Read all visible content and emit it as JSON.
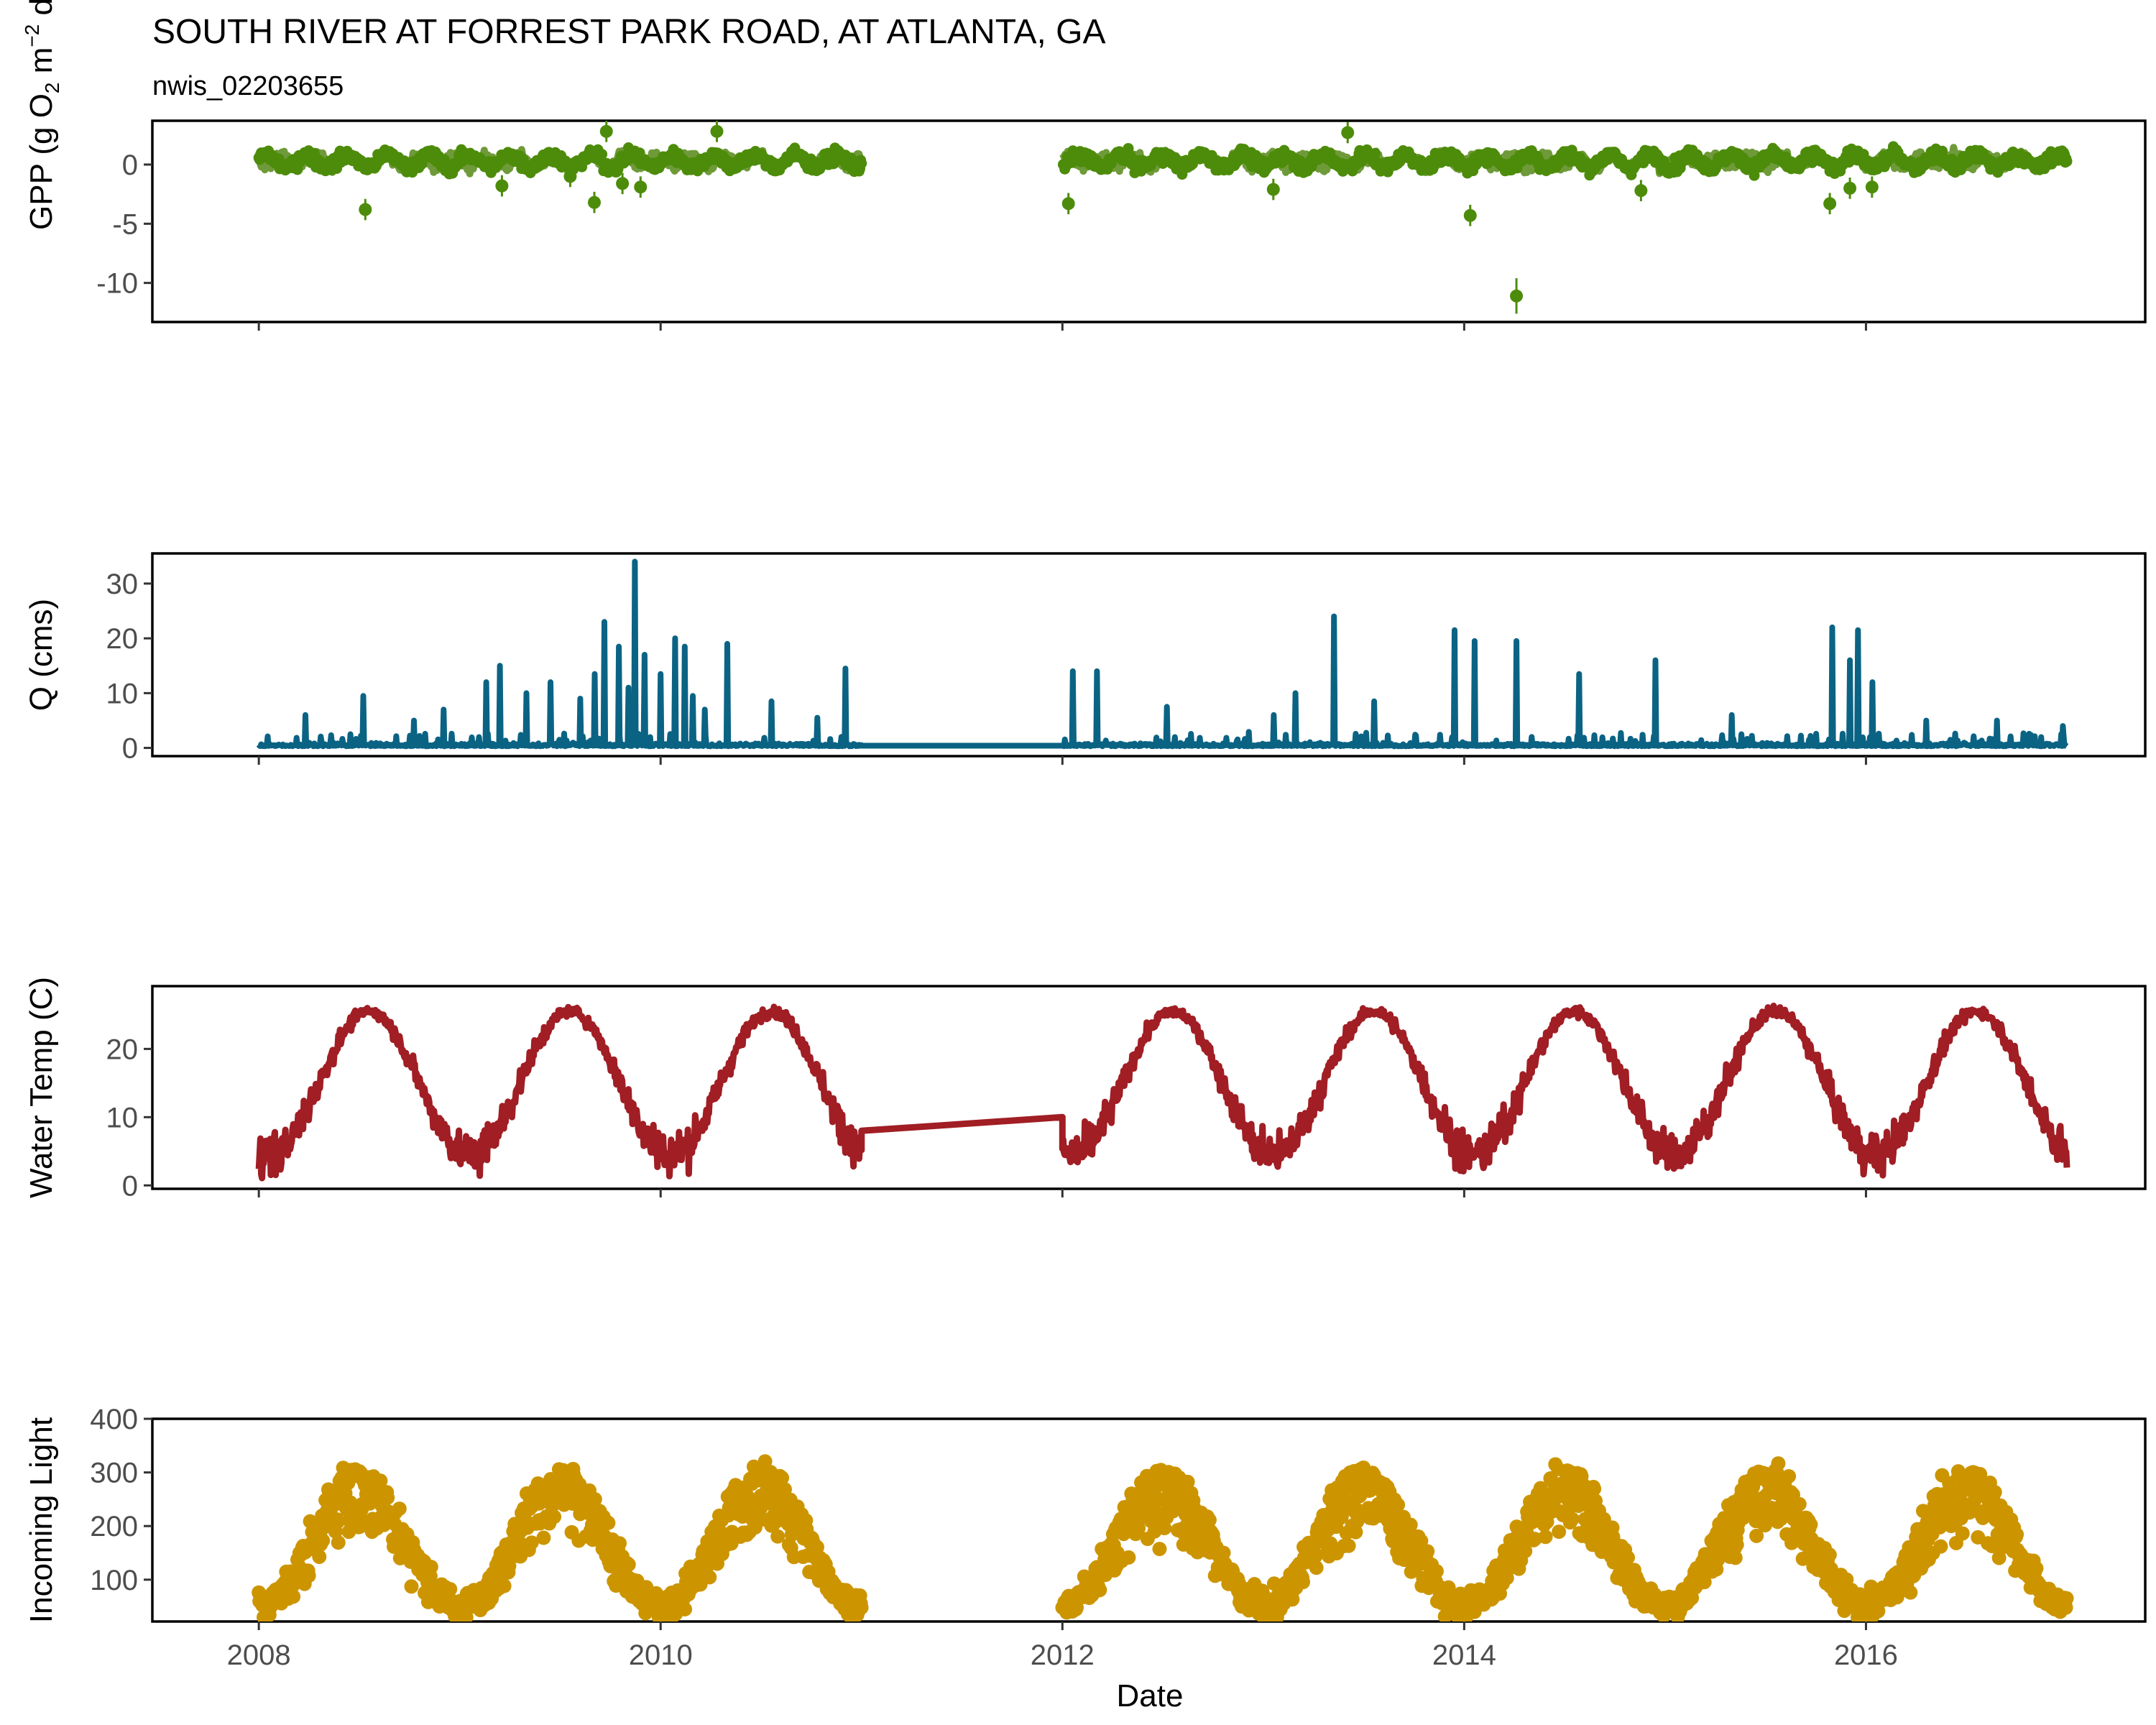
{
  "chart_data": {
    "type": "line",
    "title": "SOUTH RIVER AT FORREST PARK ROAD, AT ATLANTA, GA",
    "subtitle": "nwis_02203655",
    "xlabel": "Date",
    "x_ticks": [
      "2008",
      "2010",
      "2012",
      "2014",
      "2016"
    ],
    "x_range": [
      2007.47,
      2017.39
    ],
    "data_gap": [
      2011.0,
      2012.0
    ],
    "panels": [
      {
        "id": "gpp",
        "type": "scatter",
        "ylabel_text": {
          "a": "GPP (g  O",
          "b": "2",
          "c": " m",
          "d": "−2",
          "e": " d",
          "f": "−1",
          "g": ")"
        },
        "ylim": [
          -13.3,
          3.7
        ],
        "y_ticks": [
          "0",
          "-5",
          "-10"
        ],
        "color": "#4d8c0a",
        "baseline": 0.3,
        "outliers": [
          {
            "x": 2008.53,
            "y": -3.8
          },
          {
            "x": 2009.67,
            "y": -3.2
          },
          {
            "x": 2009.73,
            "y": 2.8
          },
          {
            "x": 2009.21,
            "y": -1.8
          },
          {
            "x": 2009.81,
            "y": -1.6
          },
          {
            "x": 2009.9,
            "y": -1.9
          },
          {
            "x": 2009.55,
            "y": -1.0
          },
          {
            "x": 2010.28,
            "y": 2.8
          },
          {
            "x": 2012.03,
            "y": -3.3
          },
          {
            "x": 2013.05,
            "y": -2.1
          },
          {
            "x": 2013.42,
            "y": 2.7
          },
          {
            "x": 2014.03,
            "y": -4.3
          },
          {
            "x": 2014.26,
            "y": -11.1
          },
          {
            "x": 2014.88,
            "y": -2.2
          },
          {
            "x": 2015.82,
            "y": -3.3
          },
          {
            "x": 2015.92,
            "y": -2.0
          },
          {
            "x": 2016.03,
            "y": -1.9
          }
        ]
      },
      {
        "id": "q",
        "type": "line",
        "ylabel": "Q (cms)",
        "ylim": [
          -1.5,
          35.5
        ],
        "y_ticks": [
          "0",
          "10",
          "20",
          "30"
        ],
        "color": "#0b6384",
        "gap_level": 0.4,
        "peaks": [
          {
            "x": 2008.23,
            "y": 6.0
          },
          {
            "x": 2008.52,
            "y": 9.5
          },
          {
            "x": 2008.77,
            "y": 5.0
          },
          {
            "x": 2008.92,
            "y": 7.0
          },
          {
            "x": 2009.13,
            "y": 12.0
          },
          {
            "x": 2009.2,
            "y": 15.0
          },
          {
            "x": 2009.33,
            "y": 10.0
          },
          {
            "x": 2009.45,
            "y": 12.0
          },
          {
            "x": 2009.6,
            "y": 9.0
          },
          {
            "x": 2009.67,
            "y": 13.5
          },
          {
            "x": 2009.72,
            "y": 23.0
          },
          {
            "x": 2009.79,
            "y": 18.5
          },
          {
            "x": 2009.84,
            "y": 11.0
          },
          {
            "x": 2009.87,
            "y": 34.0
          },
          {
            "x": 2009.92,
            "y": 17.0
          },
          {
            "x": 2010.0,
            "y": 13.5
          },
          {
            "x": 2010.07,
            "y": 20.0
          },
          {
            "x": 2010.12,
            "y": 18.5
          },
          {
            "x": 2010.16,
            "y": 9.5
          },
          {
            "x": 2010.22,
            "y": 7.0
          },
          {
            "x": 2010.33,
            "y": 19.0
          },
          {
            "x": 2010.55,
            "y": 8.5
          },
          {
            "x": 2010.78,
            "y": 5.5
          },
          {
            "x": 2010.92,
            "y": 14.5
          },
          {
            "x": 2012.05,
            "y": 14.0
          },
          {
            "x": 2012.17,
            "y": 14.0
          },
          {
            "x": 2012.52,
            "y": 7.5
          },
          {
            "x": 2013.05,
            "y": 6.0
          },
          {
            "x": 2013.16,
            "y": 10.0
          },
          {
            "x": 2013.35,
            "y": 24.0
          },
          {
            "x": 2013.55,
            "y": 8.5
          },
          {
            "x": 2013.95,
            "y": 21.5
          },
          {
            "x": 2014.05,
            "y": 19.5
          },
          {
            "x": 2014.26,
            "y": 19.5
          },
          {
            "x": 2014.57,
            "y": 13.5
          },
          {
            "x": 2014.95,
            "y": 16.0
          },
          {
            "x": 2015.33,
            "y": 6.0
          },
          {
            "x": 2015.83,
            "y": 22.0
          },
          {
            "x": 2015.92,
            "y": 16.0
          },
          {
            "x": 2015.96,
            "y": 21.5
          },
          {
            "x": 2016.03,
            "y": 12.0
          },
          {
            "x": 2016.3,
            "y": 5.0
          },
          {
            "x": 2016.65,
            "y": 5.0
          },
          {
            "x": 2016.98,
            "y": 4.0
          }
        ]
      },
      {
        "id": "temp",
        "type": "line",
        "ylabel": "Water Temp (C)",
        "ylim": [
          -0.5,
          29.2
        ],
        "y_ticks": [
          "0",
          "10",
          "20"
        ],
        "color": "#a01e24",
        "seasonal_mean": 15,
        "seasonal_amplitude": 10.5,
        "gap_start": {
          "x": 2011.0,
          "y": 8.0
        },
        "gap_end": {
          "x": 2012.0,
          "y": 10.0
        }
      },
      {
        "id": "light",
        "type": "scatter",
        "ylabel": "Incoming Light",
        "ylim": [
          22,
          400
        ],
        "y_ticks": [
          "100",
          "200",
          "300",
          "400"
        ],
        "color": "#cc9500",
        "seasonal_mean": 185,
        "seasonal_amplitude": 125
      }
    ]
  }
}
